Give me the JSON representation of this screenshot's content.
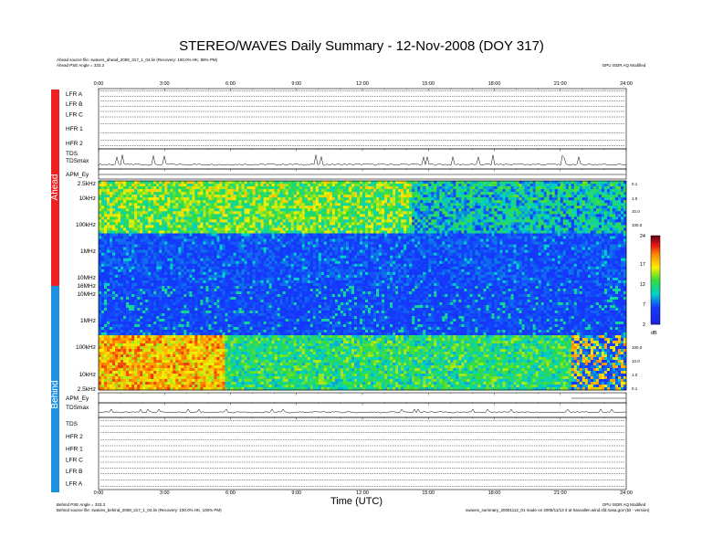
{
  "title": "STEREO/WAVES Daily Summary - 12-Nov-2008 (DOY 317)",
  "header": {
    "ahead_source": "Ahead source file: swaves_ahead_2008_317_1_04.lin (Recovery: 100.0% HK, 88% PM)",
    "ahead_angle": "Ahead PSE Angle = 333.3",
    "ahead_right": "DPU ISDR AQ Modified"
  },
  "footer": {
    "behind_angle": "Behind PSE Angle = 333.3",
    "behind_source": "Behind source file: swaves_behind_2008_317_1_04.lin (Recovery: 100.0% HK, 100% PM)",
    "right1": "DPU ISDR AQ Modified",
    "right2": "swaves_summary_20081112_01 made on 2008/11/13 3 at hascallen.wind.sfd.nasa.gov (bit - version)"
  },
  "chart_data": {
    "type": "heatmap",
    "title": "STEREO/WAVES Daily Summary - 12-Nov-2008 (DOY 317)",
    "xlabel": "Time (UTC)",
    "x_ticks": [
      "0:00",
      "3:00",
      "6:00",
      "9:00",
      "12:00",
      "15:00",
      "18:00",
      "21:00",
      "24:00"
    ],
    "xlim_hours": [
      0,
      24
    ],
    "spacecraft": [
      "Ahead",
      "Behind"
    ],
    "spacecraft_colors": {
      "Ahead": "#ee2020",
      "Behind": "#2090e0"
    },
    "ahead_panels": [
      "LFR A",
      "LFR B",
      "LFR C",
      "HFR 1",
      "HFR 2",
      "TDS",
      "TDSmax",
      "APM_Ey"
    ],
    "behind_panels": [
      "APM_Ey",
      "TDSmax",
      "TDS",
      "HFR 2",
      "HFR 1",
      "LFR C",
      "LFR B",
      "LFR A"
    ],
    "frequency_ticks_ahead": [
      "2.5kHz",
      "10kHz",
      "100kHz",
      "1MHz",
      "10MHz",
      "16MHz"
    ],
    "frequency_ticks_behind": [
      "10MHz",
      "1MHz",
      "100kHz",
      "10kHz",
      "2.5kHz"
    ],
    "right_ticks_ahead": [
      "0.1",
      "1.0",
      "10.0",
      "100.0"
    ],
    "right_ticks_behind": [
      "100.0",
      "10.0",
      "1.0",
      "0.1"
    ],
    "colorbar": {
      "ticks": [
        24,
        17,
        12,
        7,
        2
      ],
      "unit": "dB",
      "range": [
        2,
        24
      ]
    },
    "events_hours": {
      "ahead_low_freq_change": 14.2,
      "behind_low_freq_change": 5.7,
      "behind_burst_region_start": 21.5
    }
  }
}
